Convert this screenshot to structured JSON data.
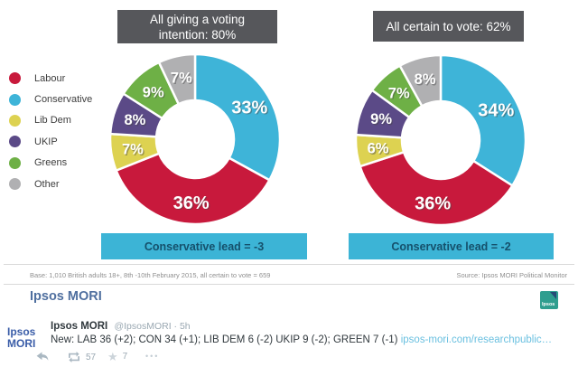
{
  "legend": {
    "items": [
      {
        "label": "Labour",
        "color": "#c8193c"
      },
      {
        "label": "Conservative",
        "color": "#3eb4d8"
      },
      {
        "label": "Lib Dem",
        "color": "#ddd251"
      },
      {
        "label": "UKIP",
        "color": "#5b4a87"
      },
      {
        "label": "Greens",
        "color": "#6eb046"
      },
      {
        "label": "Other",
        "color": "#b0b0b2"
      }
    ]
  },
  "chart_data": [
    {
      "type": "pie",
      "variant": "donut",
      "title": "All giving a voting intention: 80%",
      "title_lines": [
        "All giving a voting",
        "intention: 80%"
      ],
      "segments": [
        {
          "label": "Conservative",
          "value": 33,
          "color": "#3eb4d8"
        },
        {
          "label": "Labour",
          "value": 36,
          "color": "#c8193c"
        },
        {
          "label": "Lib Dem",
          "value": 7,
          "color": "#ddd251"
        },
        {
          "label": "UKIP",
          "value": 8,
          "color": "#5b4a87"
        },
        {
          "label": "Greens",
          "value": 9,
          "color": "#6eb046"
        },
        {
          "label": "Other",
          "value": 7,
          "color": "#b0b0b2"
        }
      ],
      "lead_label": "Conservative lead = -3"
    },
    {
      "type": "pie",
      "variant": "donut",
      "title": "All certain to vote: 62%",
      "title_lines": [
        "All certain to vote: 62%"
      ],
      "segments": [
        {
          "label": "Conservative",
          "value": 34,
          "color": "#3eb4d8"
        },
        {
          "label": "Labour",
          "value": 36,
          "color": "#c8193c"
        },
        {
          "label": "Lib Dem",
          "value": 6,
          "color": "#ddd251"
        },
        {
          "label": "UKIP",
          "value": 9,
          "color": "#5b4a87"
        },
        {
          "label": "Greens",
          "value": 7,
          "color": "#6eb046"
        },
        {
          "label": "Other",
          "value": 8,
          "color": "#b0b0b2"
        }
      ],
      "lead_label": "Conservative lead = -2"
    }
  ],
  "footnote": {
    "base": "Base: 1,010 British adults 18+, 8th -10th February 2015, all certain to vote = 659",
    "source": "Source: Ipsos MORI Political Monitor"
  },
  "caption": {
    "title": "Ipsos MORI"
  },
  "ipsos_logo": {
    "text": "Ipsos",
    "color": "#2f9e8f"
  },
  "tweet": {
    "avatar_line1": "Ipsos",
    "avatar_line2": "MORI",
    "author": "Ipsos MORI",
    "meta": "@IpsosMORI · 5h",
    "body_text": "New: LAB 36 (+2); CON 34 (+1); LIB DEM 6 (-2) UKIP 9 (-2); GREEN 7 (-1) ",
    "link_text": "ipsos-mori.com/researchpublic…",
    "actions": {
      "retweet_count": "57",
      "favorite_count": "7"
    }
  },
  "colors": {
    "header_box": "#56575b",
    "lead_bar": "#3cb4d6",
    "lead_text": "#15506b"
  }
}
